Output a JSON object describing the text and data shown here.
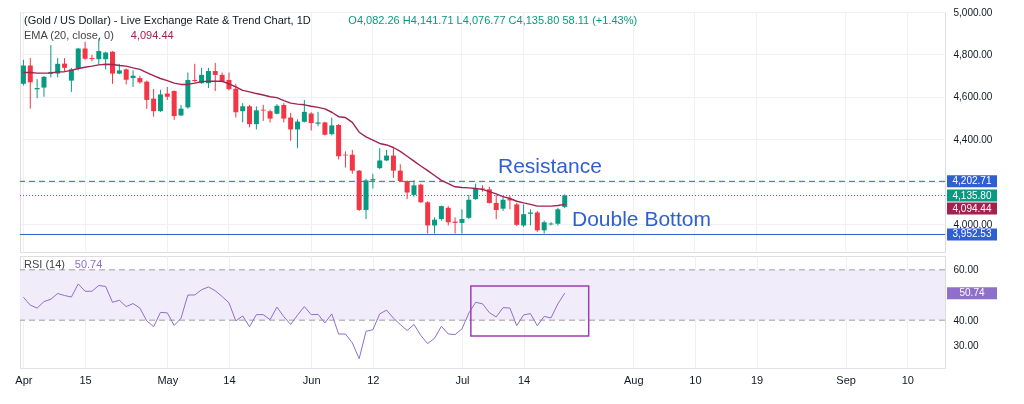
{
  "chart_data": [
    {
      "type": "candlestick",
      "title": "(Gold / US Dollar) - Live Exchange Rate & Trend Chart, 1D",
      "annotations": [
        "O4,082.26  H4,141.71  L4,076.77  C4,135.80  58.11 (+1.43%)",
        "4,094.44",
        {
          "text": "Resistance",
          "y": 4202.71
        },
        {
          "text": "Double Bottom",
          "y": 3952.53
        }
      ],
      "categories": [
        null,
        null,
        null,
        null,
        null,
        null,
        null,
        null,
        null,
        null,
        null,
        null,
        null,
        null,
        null,
        null,
        null,
        null,
        null,
        null,
        null,
        null,
        null,
        null,
        null,
        null,
        null,
        null,
        null,
        null,
        null,
        null,
        null,
        null,
        null,
        null,
        null,
        null,
        null,
        null,
        null,
        null,
        null,
        null,
        null,
        null,
        null,
        null,
        null,
        null,
        null,
        null,
        null,
        null,
        null,
        null,
        null,
        null,
        null,
        null,
        null,
        null,
        null,
        null,
        null,
        null,
        null,
        null,
        null,
        null,
        null,
        null,
        null,
        null,
        null,
        null,
        null,
        null,
        null,
        null,
        null,
        null,
        null,
        null,
        null,
        null,
        null,
        null,
        null,
        null,
        null,
        null,
        null,
        null,
        null,
        null,
        null,
        null,
        null,
        null,
        null,
        null,
        null,
        null,
        null,
        null,
        null,
        null,
        null,
        null,
        null,
        null,
        null,
        null,
        null,
        null,
        null,
        null,
        null,
        null,
        null,
        null,
        null,
        null,
        null,
        null,
        null,
        null,
        null,
        null,
        null,
        null,
        null,
        null,
        null
      ],
      "ohlc": [
        [
          4662,
          4775,
          4654,
          4748
        ],
        [
          4748,
          4783,
          4545,
          4669
        ],
        [
          4636,
          4684,
          4594,
          4642
        ],
        [
          4644,
          4698,
          4601,
          4695
        ],
        [
          4710,
          4844,
          4692,
          4718
        ],
        [
          4710,
          4783,
          4692,
          4756
        ],
        [
          4757,
          4783,
          4722,
          4737
        ],
        [
          4677,
          4737,
          4624,
          4730
        ],
        [
          4734,
          4831,
          4725,
          4828
        ],
        [
          4828,
          4859,
          4775,
          4780
        ],
        [
          4783,
          4798,
          4768,
          4778
        ],
        [
          4778,
          4874,
          4753,
          4816
        ],
        [
          4778,
          4813,
          4730,
          4809
        ],
        [
          4813,
          4816,
          4662,
          4710
        ],
        [
          4710,
          4756,
          4707,
          4725
        ],
        [
          4730,
          4734,
          4659,
          4681
        ],
        [
          4689,
          4725,
          4647,
          4700
        ],
        [
          4689,
          4700,
          4662,
          4669
        ],
        [
          4672,
          4677,
          4544,
          4586
        ],
        [
          4592,
          4637,
          4507,
          4533
        ],
        [
          4533,
          4634,
          4530,
          4612
        ],
        [
          4616,
          4647,
          4586,
          4601
        ],
        [
          4628,
          4631,
          4492,
          4510
        ],
        [
          4513,
          4563,
          4510,
          4545
        ],
        [
          4551,
          4715,
          4545,
          4680
        ],
        [
          4680,
          4756,
          4669,
          4675
        ],
        [
          4665,
          4737,
          4662,
          4704
        ],
        [
          4665,
          4737,
          4642,
          4722
        ],
        [
          4722,
          4760,
          4628,
          4704
        ],
        [
          4704,
          4715,
          4669,
          4674
        ],
        [
          4680,
          4715,
          4631,
          4637
        ],
        [
          4639,
          4662,
          4503,
          4528
        ],
        [
          4533,
          4571,
          4480,
          4556
        ],
        [
          4556,
          4563,
          4457,
          4472
        ],
        [
          4472,
          4556,
          4447,
          4537
        ],
        [
          4540,
          4563,
          4487,
          4536
        ],
        [
          4533,
          4540,
          4480,
          4498
        ],
        [
          4521,
          4566,
          4518,
          4559
        ],
        [
          4562,
          4571,
          4480,
          4498
        ],
        [
          4503,
          4525,
          4394,
          4447
        ],
        [
          4447,
          4495,
          4359,
          4484
        ],
        [
          4483,
          4586,
          4480,
          4530
        ],
        [
          4522,
          4528,
          4442,
          4477
        ],
        [
          4474,
          4530,
          4462,
          4480
        ],
        [
          4480,
          4483,
          4419,
          4422
        ],
        [
          4425,
          4503,
          4419,
          4466
        ],
        [
          4468,
          4472,
          4306,
          4321
        ],
        [
          4328,
          4344,
          4268,
          4325
        ],
        [
          4328,
          4351,
          4238,
          4253
        ],
        [
          4253,
          4256,
          4063,
          4068
        ],
        [
          4068,
          4215,
          4025,
          4207
        ],
        [
          4207,
          4238,
          4169,
          4213
        ],
        [
          4265,
          4359,
          4260,
          4301
        ],
        [
          4301,
          4351,
          4298,
          4324
        ],
        [
          4324,
          4359,
          4219,
          4253
        ],
        [
          4253,
          4283,
          4200,
          4204
        ],
        [
          4204,
          4207,
          4119,
          4150
        ],
        [
          4139,
          4207,
          4131,
          4184
        ],
        [
          4187,
          4192,
          4101,
          4104
        ],
        [
          4104,
          4109,
          3957,
          3995
        ],
        [
          3995,
          4033,
          3957,
          4022
        ],
        [
          4025,
          4089,
          4018,
          4086
        ],
        [
          4078,
          4086,
          3995,
          4010
        ],
        [
          4013,
          4033,
          3957,
          4007
        ],
        [
          4007,
          4071,
          3957,
          4025
        ],
        [
          4031,
          4139,
          4025,
          4116
        ],
        [
          4119,
          4192,
          4116,
          4169
        ],
        [
          4169,
          4184,
          4154,
          4165
        ],
        [
          4165,
          4177,
          4098,
          4101
        ],
        [
          4101,
          4139,
          4025,
          4068
        ],
        [
          4074,
          4131,
          4063,
          4116
        ],
        [
          4119,
          4134,
          4071,
          4113
        ],
        [
          4094,
          4101,
          3992,
          3998
        ],
        [
          3995,
          4094,
          3988,
          4048
        ],
        [
          4050,
          4071,
          3995,
          4056
        ],
        [
          4056,
          4063,
          3965,
          3972
        ],
        [
          3972,
          4018,
          3957,
          4010
        ],
        [
          4000,
          4010,
          3995,
          4004
        ],
        [
          4003,
          4078,
          3995,
          4071
        ],
        [
          4082.26,
          4141.71,
          4076.77,
          4135.8
        ],
        null,
        null,
        null,
        null,
        null,
        null,
        null,
        null,
        null,
        null,
        null,
        null,
        null,
        null,
        null,
        null,
        null,
        null,
        null,
        null,
        null,
        null,
        null,
        null,
        null,
        null,
        null,
        null,
        null,
        null,
        null,
        null,
        null,
        null,
        null,
        null,
        null,
        null,
        null,
        null,
        null,
        null,
        null,
        null,
        null,
        null,
        null,
        null,
        null,
        null,
        null,
        null,
        null,
        null,
        null
      ],
      "colors": [
        "#089981",
        "#f23645",
        "#089981",
        "#089981",
        "#089981",
        "#089981",
        "#f23645",
        "#089981",
        "#089981",
        "#f23645",
        "#f23645",
        "#089981",
        "#089981",
        "#f23645",
        "#089981",
        "#f23645",
        "#089981",
        "#f23645",
        "#f23645",
        "#f23645",
        "#089981",
        "#f23645",
        "#f23645",
        "#089981",
        "#089981",
        "#f23645",
        "#089981",
        "#089981",
        "#f23645",
        "#f23645",
        "#f23645",
        "#f23645",
        "#089981",
        "#f23645",
        "#089981",
        "#f23645",
        "#f23645",
        "#089981",
        "#f23645",
        "#f23645",
        "#089981",
        "#089981",
        "#f23645",
        "#089981",
        "#f23645",
        "#089981",
        "#f23645",
        "#f23645",
        "#f23645",
        "#f23645",
        "#089981",
        "#089981",
        "#089981",
        "#089981",
        "#f23645",
        "#f23645",
        "#f23645",
        "#089981",
        "#f23645",
        "#f23645",
        "#089981",
        "#089981",
        "#f23645",
        "#f23645",
        "#089981",
        "#089981",
        "#089981",
        "#f23645",
        "#f23645",
        "#f23645",
        "#089981",
        "#f23645",
        "#f23645",
        "#089981",
        "#089981",
        "#f23645",
        "#089981",
        "#089981",
        "#089981",
        "#089981",
        null,
        null,
        null,
        null,
        null,
        null,
        null,
        null,
        null,
        null,
        null,
        null,
        null,
        null,
        null,
        null,
        null,
        null,
        null,
        null,
        null,
        null,
        null,
        null,
        null,
        null,
        null,
        null,
        null,
        null,
        null,
        null,
        null,
        null,
        null,
        null,
        null,
        null,
        null,
        null,
        null,
        null,
        null,
        null,
        null,
        null,
        null,
        null,
        null,
        null,
        null,
        null,
        null,
        null,
        null
      ],
      "series": [
        {
          "name": "EMA (20, close, 0)",
          "type": "line",
          "color": "#a2224f",
          "values": [
            4715,
            4715,
            4712,
            4712,
            4713,
            4718,
            4719,
            4725,
            4734,
            4740,
            4745,
            4751,
            4754,
            4753,
            4748,
            4745,
            4737,
            4730,
            4715,
            4700,
            4687,
            4677,
            4665,
            4659,
            4659,
            4665,
            4672,
            4674,
            4674,
            4674,
            4662,
            4647,
            4631,
            4624,
            4616,
            4609,
            4601,
            4597,
            4583,
            4571,
            4566,
            4563,
            4556,
            4551,
            4544,
            4528,
            4507,
            4503,
            4480,
            4434,
            4412,
            4397,
            4381,
            4374,
            4362,
            4344,
            4321,
            4298,
            4275,
            4253,
            4230,
            4207,
            4192,
            4177,
            4174,
            4172,
            4169,
            4165,
            4154,
            4144,
            4131,
            4122,
            4109,
            4101,
            4094,
            4086,
            4086,
            4086,
            4089,
            4094.44,
            null,
            null,
            null,
            null,
            null,
            null,
            null,
            null,
            null,
            null,
            null,
            null,
            null,
            null,
            null,
            null,
            null,
            null,
            null,
            null,
            null,
            null,
            null,
            null,
            null,
            null,
            null,
            null,
            null,
            null,
            null,
            null,
            null,
            null,
            null,
            null,
            null,
            null,
            null,
            null,
            null,
            null,
            null,
            null,
            null,
            null,
            null,
            null,
            null,
            null,
            null,
            null,
            null,
            null,
            null
          ]
        }
      ],
      "ref_lines": [
        {
          "axis": "y",
          "value": 4202.71,
          "label": "4,202.71",
          "color": "#2f5fd0",
          "line_style": "dashed"
        },
        {
          "axis": "y",
          "value": 4135.8,
          "label": "4,135.80",
          "color": "#089981",
          "line_style": "dotted"
        },
        {
          "axis": "y",
          "value": 3952.53,
          "label": "3,952.53",
          "color": "#2f5fd0",
          "line_style": "solid"
        }
      ],
      "ylim": [
        3870,
        5000
      ],
      "yticks": [
        {
          "value": 4000,
          "label": "4,000.00"
        },
        {
          "value": 4200,
          "label": null
        },
        {
          "value": 4400,
          "label": "4,400.00"
        },
        {
          "value": 4600,
          "label": "4,600.00"
        },
        {
          "value": 4800,
          "label": "4,800.00"
        },
        {
          "value": 5000,
          "label": "5,000.00"
        }
      ],
      "grid": true,
      "tick_labels": "y"
    },
    {
      "type": "line",
      "categories": [
        "Apr",
        null,
        null,
        null,
        null,
        null,
        null,
        null,
        null,
        "15",
        null,
        null,
        null,
        null,
        null,
        null,
        null,
        null,
        null,
        null,
        null,
        "May",
        null,
        null,
        null,
        null,
        null,
        null,
        null,
        null,
        "14",
        null,
        null,
        null,
        null,
        null,
        null,
        null,
        null,
        null,
        null,
        null,
        "Jun",
        null,
        null,
        null,
        null,
        null,
        null,
        null,
        null,
        "12",
        null,
        null,
        null,
        null,
        null,
        null,
        null,
        null,
        null,
        null,
        null,
        null,
        "Jul",
        null,
        null,
        null,
        null,
        null,
        null,
        null,
        null,
        "14",
        null,
        null,
        null,
        null,
        null,
        null,
        null,
        null,
        null,
        null,
        null,
        null,
        null,
        null,
        null,
        "Aug",
        null,
        null,
        null,
        null,
        null,
        null,
        null,
        null,
        "10",
        null,
        null,
        null,
        null,
        null,
        null,
        null,
        null,
        "19",
        null,
        null,
        null,
        null,
        null,
        null,
        null,
        null,
        null,
        null,
        null,
        null,
        "Sep",
        null,
        null,
        null,
        null,
        null,
        null,
        null,
        null,
        "10",
        null,
        null,
        null,
        null,
        null
      ],
      "series": [
        {
          "name": "RSI (14)",
          "color": "#8e6fc9",
          "values": [
            49.1,
            46.0,
            44.8,
            47.4,
            48.3,
            50.6,
            49.8,
            49.2,
            54.4,
            51.5,
            51.5,
            53.8,
            53.4,
            47.1,
            47.9,
            45.4,
            46.6,
            44.8,
            39.7,
            37.4,
            43.1,
            42.9,
            37.9,
            40.8,
            50.0,
            50.0,
            52.1,
            53.2,
            51.7,
            49.4,
            46.9,
            39.7,
            41.7,
            37.4,
            42.2,
            42.2,
            40.2,
            45.2,
            41.4,
            38.3,
            42.0,
            45.4,
            42.2,
            42.3,
            38.9,
            42.5,
            34.5,
            34.5,
            31.0,
            24.7,
            35.6,
            36.2,
            42.5,
            44.0,
            40.8,
            38.3,
            35.9,
            38.3,
            33.9,
            30.7,
            32.8,
            37.6,
            34.5,
            34.3,
            36.5,
            42.8,
            47.1,
            46.5,
            43.0,
            41.3,
            45.0,
            44.8,
            37.8,
            42.1,
            42.6,
            37.8,
            41.5,
            40.9,
            46.5,
            50.74,
            null,
            null,
            null,
            null,
            null,
            null,
            null,
            null,
            null,
            null,
            null,
            null,
            null,
            null,
            null,
            null,
            null,
            null,
            null,
            null,
            null,
            null,
            null,
            null,
            null,
            null,
            null,
            null,
            null,
            null,
            null,
            null,
            null,
            null,
            null,
            null,
            null,
            null,
            null,
            null,
            null,
            null,
            null,
            null,
            null,
            null,
            null,
            null,
            null,
            null,
            null,
            null,
            null,
            null,
            null
          ]
        }
      ],
      "annotations": [
        "50.74"
      ],
      "bands": [
        {
          "axis": "y",
          "from": 40,
          "to": 60,
          "color": "#f1ecfa"
        }
      ],
      "ref_lines": [
        {
          "axis": "y",
          "value": 60,
          "label": null,
          "color": "#9e9e9e",
          "line_style": "dashed"
        },
        {
          "axis": "y",
          "value": 40,
          "label": null,
          "color": "#9e9e9e",
          "line_style": "dashed"
        }
      ],
      "ylim": [
        21,
        65.5
      ],
      "yticks": [
        {
          "value": 30,
          "label": "30.00"
        },
        {
          "value": 40,
          "label": "40.00"
        },
        {
          "value": 60,
          "label": "60.00"
        }
      ],
      "grid": "x"
    }
  ]
}
